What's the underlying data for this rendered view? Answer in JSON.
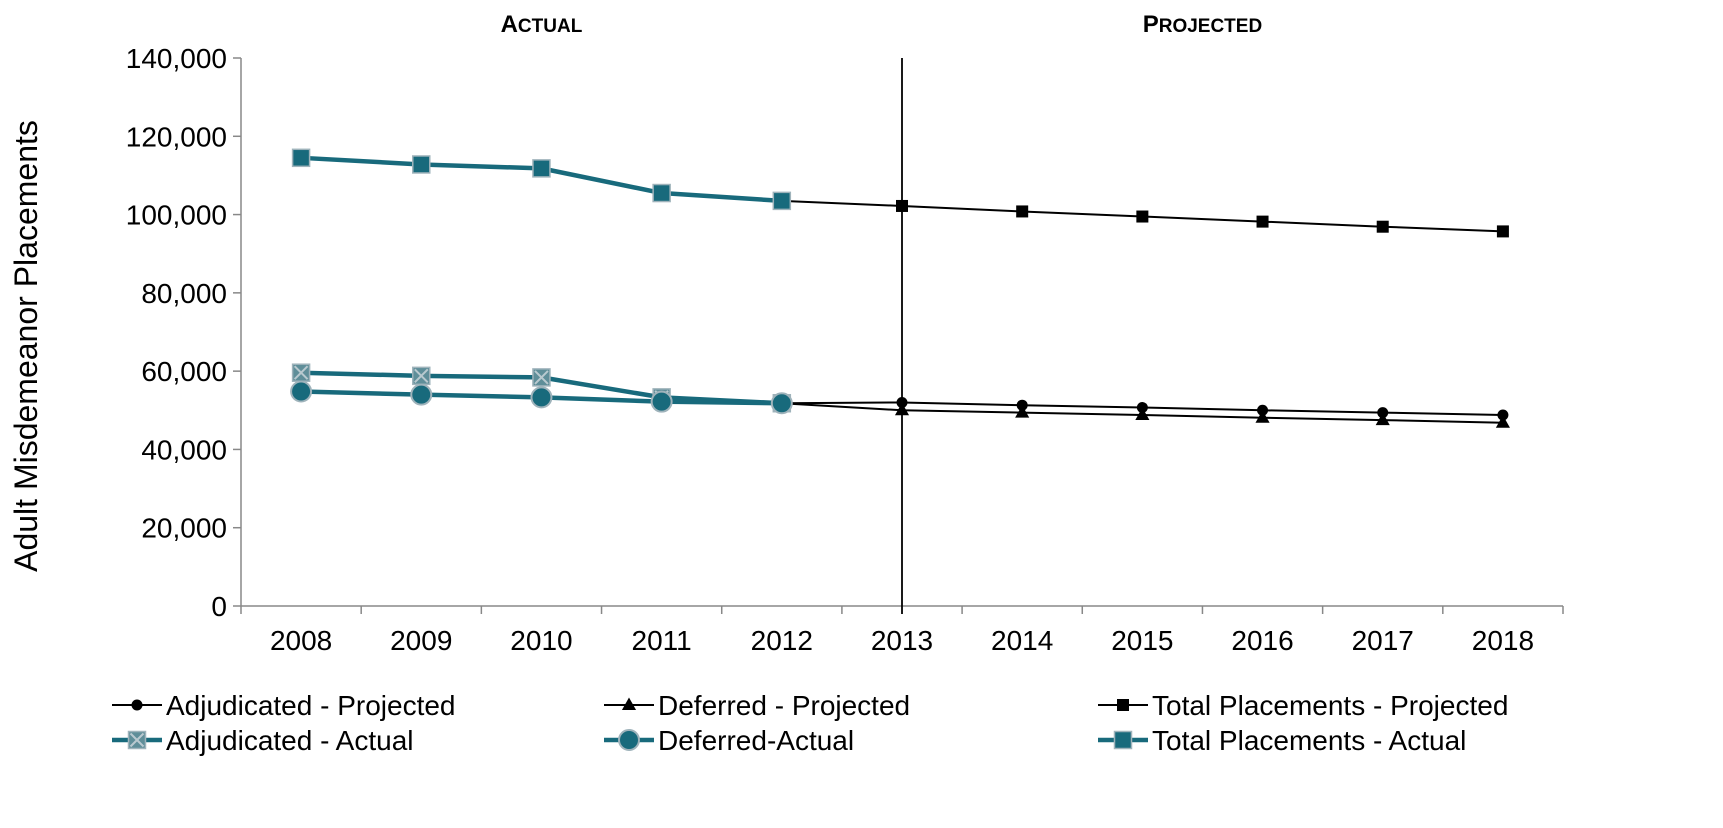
{
  "chart_data": {
    "type": "line",
    "ylabel": "Adult Misdemeanor Placements",
    "xlabel": "",
    "ylim": [
      0,
      140000
    ],
    "yticks": [
      0,
      20000,
      40000,
      60000,
      80000,
      100000,
      120000,
      140000
    ],
    "ytick_labels": [
      "0",
      "20,000",
      "40,000",
      "60,000",
      "80,000",
      "100,000",
      "120,000",
      "140,000"
    ],
    "categories": [
      "2008",
      "2009",
      "2010",
      "2011",
      "2012",
      "2013",
      "2014",
      "2015",
      "2016",
      "2017",
      "2018"
    ],
    "divider_at": "2013",
    "sections": [
      {
        "first": "A",
        "rest": "CTUAL",
        "center_category": "2010"
      },
      {
        "first": "P",
        "rest": "ROJECTED",
        "center_category": "2015.5"
      }
    ],
    "grid": false,
    "legend_position": "bottom",
    "series": [
      {
        "name": "Adjudicated - Projected",
        "style": "projected",
        "marker": "circle",
        "color": "#000000",
        "values": [
          null,
          null,
          null,
          null,
          51800,
          52000,
          51300,
          50700,
          50000,
          49400,
          48800
        ]
      },
      {
        "name": "Deferred - Projected",
        "style": "projected",
        "marker": "triangle",
        "color": "#000000",
        "values": [
          null,
          null,
          null,
          null,
          51800,
          50000,
          49400,
          48800,
          48100,
          47500,
          46800
        ]
      },
      {
        "name": "Total Placements - Projected",
        "style": "projected",
        "marker": "square",
        "color": "#000000",
        "values": [
          null,
          null,
          null,
          null,
          103500,
          102200,
          100800,
          99500,
          98200,
          96900,
          95700
        ]
      },
      {
        "name": "Adjudicated - Actual",
        "style": "actual",
        "marker": "xsquare",
        "color": "#186a7c",
        "values": [
          59600,
          58800,
          58400,
          53300,
          51800,
          null,
          null,
          null,
          null,
          null,
          null
        ]
      },
      {
        "name": "Deferred-Actual",
        "style": "actual",
        "marker": "circle",
        "color": "#186a7c",
        "values": [
          54800,
          54000,
          53300,
          52200,
          51800,
          null,
          null,
          null,
          null,
          null,
          null
        ]
      },
      {
        "name": "Total Placements - Actual",
        "style": "actual",
        "marker": "square",
        "color": "#186a7c",
        "values": [
          114500,
          112800,
          111800,
          105500,
          103500,
          null,
          null,
          null,
          null,
          null,
          null
        ]
      }
    ]
  }
}
